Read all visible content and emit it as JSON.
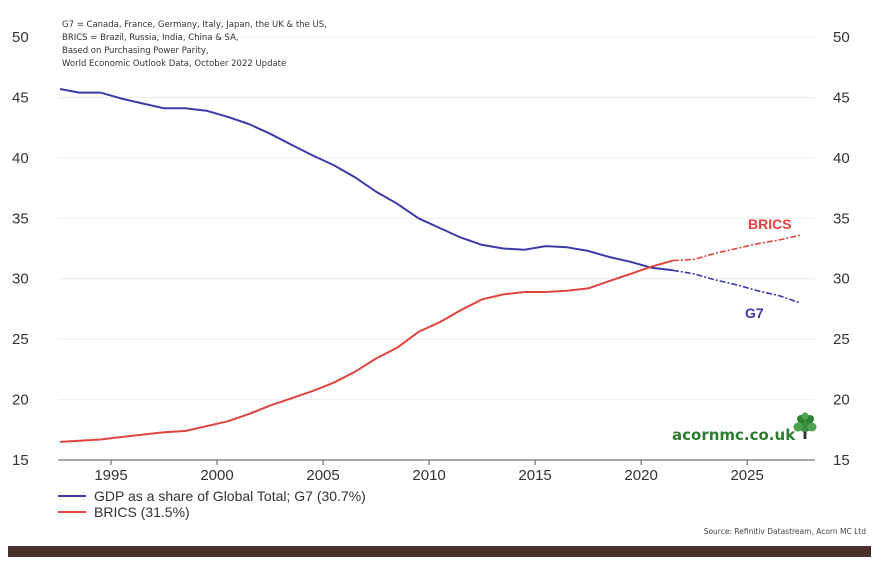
{
  "notes": [
    "G7 = Canada, France, Germany, Italy, Japan, the UK & the US,",
    "BRICS = Brazil, Russia, India, China & SA,",
    "Based on Purchasing Power Parity,",
    "World Economic Outlook Data, October 2022 Update"
  ],
  "source": "Source: Refinitiv Datastream, Acorn MC Ltd",
  "brand": {
    "text": "acornmc.co.uk",
    "icon": "tree-icon",
    "color": "#2e7d32"
  },
  "chart_data": {
    "type": "line",
    "title": "",
    "xlabel": "",
    "ylabel": "",
    "xlim": [
      1992.5,
      2028.2
    ],
    "ylim": [
      15,
      50
    ],
    "x_ticks": [
      1995,
      2000,
      2005,
      2010,
      2015,
      2020,
      2025
    ],
    "y_ticks": [
      15,
      20,
      25,
      30,
      35,
      40,
      45,
      50
    ],
    "y_axes": [
      "left",
      "right"
    ],
    "grid": "horizontal",
    "legend_position": "bottom-left",
    "series": [
      {
        "name": "GDP as a share of Global Total; G7 (30.7%)",
        "label": "G7",
        "color": "#3b3aa6",
        "x": [
          1992.6,
          1993.5,
          1994.5,
          1995.5,
          1996.5,
          1997.5,
          1998.5,
          1999.5,
          2000.5,
          2001.5,
          2002.5,
          2003.5,
          2004.5,
          2005.5,
          2006.5,
          2007.5,
          2008.5,
          2009.5,
          2010.5,
          2011.5,
          2012.5,
          2013.5,
          2014.5,
          2015.5,
          2016.5,
          2017.5,
          2018.5,
          2019.5,
          2020.5,
          2021.5,
          2022.5,
          2023.5,
          2024.5,
          2025.5,
          2026.5,
          2027.5
        ],
        "y": [
          45.7,
          45.4,
          45.4,
          44.9,
          44.5,
          44.1,
          44.1,
          43.9,
          43.4,
          42.8,
          42.0,
          41.1,
          40.2,
          39.4,
          38.4,
          37.2,
          36.2,
          35.0,
          34.2,
          33.4,
          32.8,
          32.5,
          32.4,
          32.7,
          32.6,
          32.3,
          31.8,
          31.4,
          30.9,
          30.7,
          30.4,
          29.9,
          29.5,
          29.0,
          28.6,
          28.0
        ],
        "projection_from": 2021.5
      },
      {
        "name": "BRICS (31.5%)",
        "label": "BRICS",
        "color": "#e0443f",
        "x": [
          1992.6,
          1993.5,
          1994.5,
          1995.5,
          1996.5,
          1997.5,
          1998.5,
          1999.5,
          2000.5,
          2001.5,
          2002.5,
          2003.5,
          2004.5,
          2005.5,
          2006.5,
          2007.5,
          2008.5,
          2009.5,
          2010.5,
          2011.5,
          2012.5,
          2013.5,
          2014.5,
          2015.5,
          2016.5,
          2017.5,
          2018.5,
          2019.5,
          2020.5,
          2021.5,
          2022.5,
          2023.5,
          2024.5,
          2025.5,
          2026.5,
          2027.5
        ],
        "y": [
          16.5,
          16.6,
          16.7,
          16.9,
          17.1,
          17.3,
          17.4,
          17.8,
          18.2,
          18.8,
          19.5,
          20.1,
          20.7,
          21.4,
          22.3,
          23.4,
          24.3,
          25.6,
          26.4,
          27.4,
          28.3,
          28.7,
          28.9,
          28.9,
          29.0,
          29.2,
          29.8,
          30.4,
          31.0,
          31.5,
          31.6,
          32.1,
          32.5,
          32.9,
          33.2,
          33.6
        ],
        "projection_from": 2021.5
      }
    ]
  }
}
